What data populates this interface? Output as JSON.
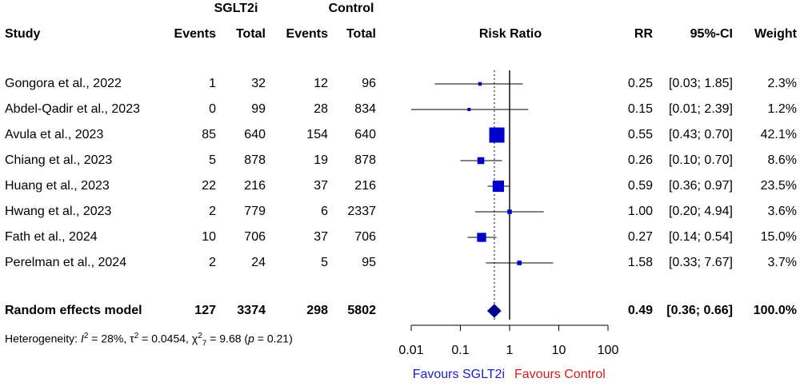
{
  "header": {
    "group1": "SGLT2i",
    "group2": "Control",
    "study": "Study",
    "events1": "Events",
    "total1": "Total",
    "events2": "Events",
    "total2": "Total",
    "risk_ratio": "Risk Ratio",
    "rr": "RR",
    "ci": "95%-CI",
    "weight": "Weight"
  },
  "studies": [
    {
      "name": "Gongora et al., 2022",
      "e1": "1",
      "n1": "32",
      "e2": "12",
      "n2": "96",
      "rr": "0.25",
      "ci": "[0.03; 1.85]",
      "weight": "2.3%"
    },
    {
      "name": "Abdel-Qadir et al., 2023",
      "e1": "0",
      "n1": "99",
      "e2": "28",
      "n2": "834",
      "rr": "0.15",
      "ci": "[0.01; 2.39]",
      "weight": "1.2%"
    },
    {
      "name": "Avula et al., 2023",
      "e1": "85",
      "n1": "640",
      "e2": "154",
      "n2": "640",
      "rr": "0.55",
      "ci": "[0.43; 0.70]",
      "weight": "42.1%"
    },
    {
      "name": "Chiang et al., 2023",
      "e1": "5",
      "n1": "878",
      "e2": "19",
      "n2": "878",
      "rr": "0.26",
      "ci": "[0.10; 0.70]",
      "weight": "8.6%"
    },
    {
      "name": "Huang et al., 2023",
      "e1": "22",
      "n1": "216",
      "e2": "37",
      "n2": "216",
      "rr": "0.59",
      "ci": "[0.36; 0.97]",
      "weight": "23.5%"
    },
    {
      "name": "Hwang et al., 2023",
      "e1": "2",
      "n1": "779",
      "e2": "6",
      "n2": "2337",
      "rr": "1.00",
      "ci": "[0.20; 4.94]",
      "weight": "3.6%"
    },
    {
      "name": "Fath et al., 2024",
      "e1": "10",
      "n1": "706",
      "e2": "37",
      "n2": "706",
      "rr": "0.27",
      "ci": "[0.14; 0.54]",
      "weight": "15.0%"
    },
    {
      "name": "Perelman et al., 2024",
      "e1": "2",
      "n1": "24",
      "e2": "5",
      "n2": "95",
      "rr": "1.58",
      "ci": "[0.33; 7.67]",
      "weight": "3.7%"
    }
  ],
  "summary": {
    "name": "Random effects model",
    "e1": "127",
    "n1": "3374",
    "e2": "298",
    "n2": "5802",
    "rr": "0.49",
    "ci": "[0.36; 0.66]",
    "weight": "100.0%"
  },
  "heterogeneity": {
    "prefix": "Heterogeneity: ",
    "i2_symbol": "I",
    "i2_sup": "2",
    "i2_value": " = 28%, ",
    "tau_symbol": "τ",
    "tau_sup": "2",
    "tau_value": " = 0.0454, ",
    "chi_symbol": "χ",
    "chi_sup": "2",
    "chi_sub": "7",
    "chi_value": " = 9.68 (",
    "p_symbol": "p",
    "p_value": " = 0.21)"
  },
  "colors": {
    "square": "#0000cc",
    "favours_left": "#1c1cc8",
    "favours_right": "#d01c1c"
  },
  "chart_data": {
    "type": "forest",
    "title": "Risk Ratio",
    "scale": "log",
    "xlim": [
      0.01,
      100
    ],
    "ticks": [
      0.01,
      0.1,
      1,
      10,
      100
    ],
    "tick_labels": [
      "0.01",
      "0.1",
      "1",
      "10",
      "100"
    ],
    "null_value": 1,
    "labels_left": "Favours SGLT2i",
    "labels_right": "Favours Control",
    "studies": [
      {
        "rr": 0.25,
        "lower": 0.03,
        "upper": 1.85,
        "weight": 2.3
      },
      {
        "rr": 0.15,
        "lower": 0.01,
        "upper": 2.39,
        "weight": 1.2
      },
      {
        "rr": 0.55,
        "lower": 0.43,
        "upper": 0.7,
        "weight": 42.1
      },
      {
        "rr": 0.26,
        "lower": 0.1,
        "upper": 0.7,
        "weight": 8.6
      },
      {
        "rr": 0.59,
        "lower": 0.36,
        "upper": 0.97,
        "weight": 23.5
      },
      {
        "rr": 1.0,
        "lower": 0.2,
        "upper": 4.94,
        "weight": 3.6
      },
      {
        "rr": 0.27,
        "lower": 0.14,
        "upper": 0.54,
        "weight": 15.0
      },
      {
        "rr": 1.58,
        "lower": 0.33,
        "upper": 7.67,
        "weight": 3.7
      }
    ],
    "pooled": {
      "rr": 0.49,
      "lower": 0.36,
      "upper": 0.66
    }
  }
}
